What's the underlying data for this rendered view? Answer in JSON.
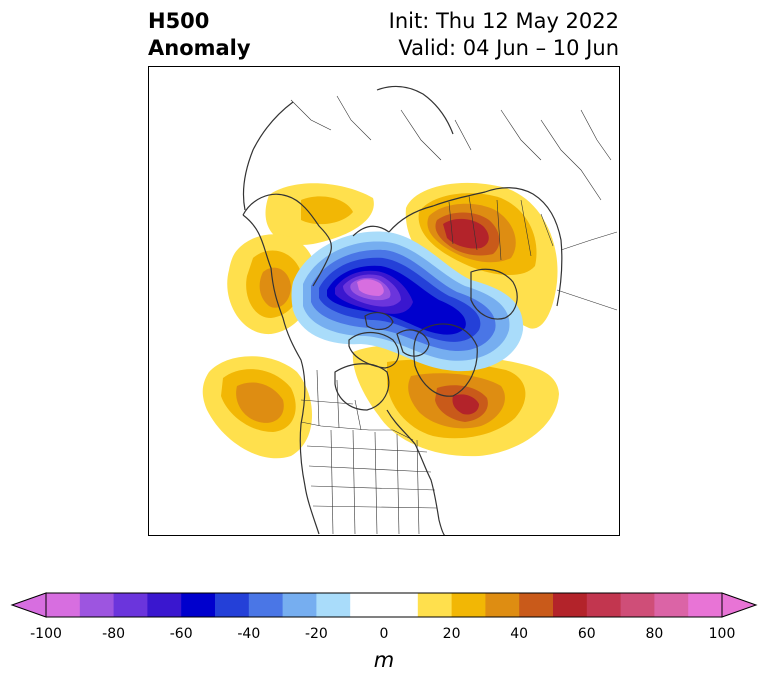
{
  "title": {
    "line1": "H500",
    "line2": "Anomaly",
    "init": "Init: Thu 12 May 2022",
    "valid": "Valid: 04 Jun – 10 Jun"
  },
  "colorbar": {
    "unit": "m",
    "min": -100,
    "max": 100,
    "ticks": [
      "-100",
      "-80",
      "-60",
      "-40",
      "-20",
      "0",
      "20",
      "40",
      "60",
      "80",
      "100"
    ],
    "bins": [
      {
        "from": -100,
        "to": -90,
        "color": "#d76ee0"
      },
      {
        "from": -90,
        "to": -80,
        "color": "#9d55e0"
      },
      {
        "from": -80,
        "to": -70,
        "color": "#6b35dc"
      },
      {
        "from": -70,
        "to": -60,
        "color": "#3a17cf"
      },
      {
        "from": -60,
        "to": -50,
        "color": "#0000cd"
      },
      {
        "from": -50,
        "to": -40,
        "color": "#2440d8"
      },
      {
        "from": -40,
        "to": -30,
        "color": "#4a76e6"
      },
      {
        "from": -30,
        "to": -20,
        "color": "#76aef0"
      },
      {
        "from": -20,
        "to": -10,
        "color": "#a9dcfa"
      },
      {
        "from": -10,
        "to": 10,
        "color": "#ffffff"
      },
      {
        "from": 10,
        "to": 20,
        "color": "#ffe04d"
      },
      {
        "from": 20,
        "to": 30,
        "color": "#f2b705"
      },
      {
        "from": 30,
        "to": 40,
        "color": "#de8d12"
      },
      {
        "from": 40,
        "to": 50,
        "color": "#c95a1a"
      },
      {
        "from": 50,
        "to": 60,
        "color": "#b3232a"
      },
      {
        "from": 60,
        "to": 70,
        "color": "#c2364f"
      },
      {
        "from": 70,
        "to": 80,
        "color": "#cf4e78"
      },
      {
        "from": 80,
        "to": 90,
        "color": "#db64a6"
      },
      {
        "from": 90,
        "to": 100,
        "color": "#e874d6"
      }
    ],
    "under_color": "#d76ee0",
    "over_color": "#e874d6"
  },
  "map": {
    "projection": "north-polar-stereographic",
    "variable": "500 hPa geopotential height anomaly",
    "features": [
      {
        "name": "arctic-negative-anomaly",
        "sign": "negative",
        "peak_m": -95,
        "region": "Arctic Ocean / Beaufort Sea"
      },
      {
        "name": "siberia-positive-anomaly",
        "sign": "positive",
        "peak_m": 60,
        "region": "Northern Europe / Western Siberia"
      },
      {
        "name": "north-atlantic-positive-anomaly",
        "sign": "positive",
        "peak_m": 55,
        "region": "Labrador Sea / Northwest Atlantic"
      },
      {
        "name": "alaska-positive-anomaly",
        "sign": "positive",
        "peak_m": 35,
        "region": "Eastern Siberia / Bering"
      },
      {
        "name": "northeast-pacific-positive-anomaly",
        "sign": "positive",
        "peak_m": 35,
        "region": "Northeast Pacific"
      }
    ]
  }
}
